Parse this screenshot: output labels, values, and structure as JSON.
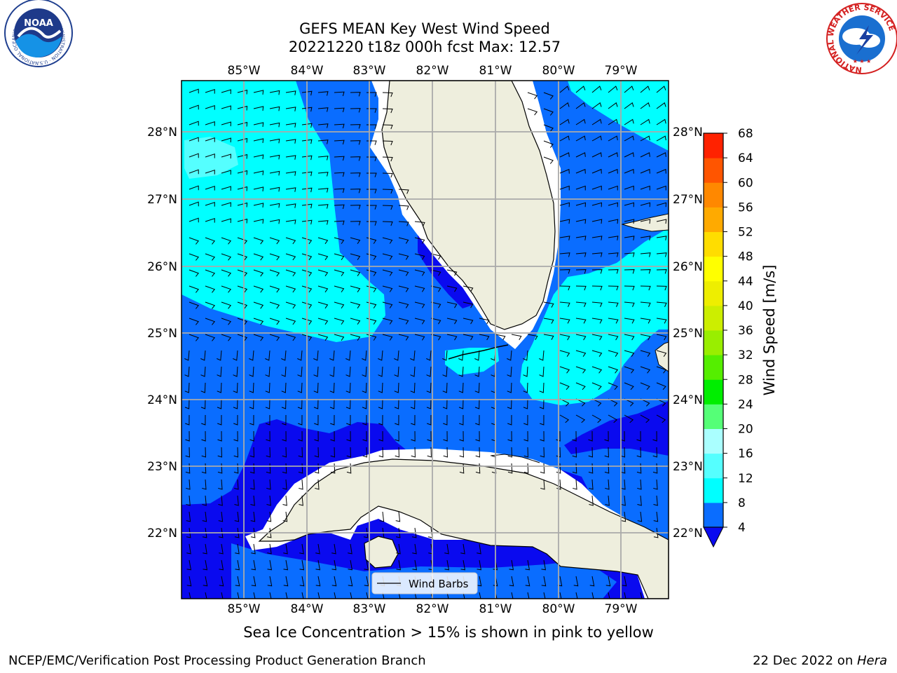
{
  "header": {
    "title_line1": "GEFS MEAN Key West Wind Speed",
    "title_line2": "20221220 t18z 000h fcst   Max: 12.57"
  },
  "logos": {
    "noaa_text": "NOAA",
    "noaa_ring_text": "NATIONAL OCEANIC AND ATMOSPHERIC ADMINISTRATION · U.S. DEPARTMENT OF COMMERCE",
    "nws_ring_text": "NATIONAL WEATHER SERVICE"
  },
  "map": {
    "lon_labels": [
      "85°W",
      "84°W",
      "83°W",
      "82°W",
      "81°W",
      "80°W",
      "79°W"
    ],
    "lat_labels": [
      "28°N",
      "27°N",
      "26°N",
      "25°N",
      "24°N",
      "23°N",
      "22°N"
    ],
    "legend_label": "Wind Barbs",
    "colors": {
      "land": "#eeeedd",
      "level_4_8": "#0a6dff",
      "level_0_4": "#0a0aef",
      "level_8_12": "#00ffff",
      "level_12_16": "#55ffff",
      "coast_gap": "#ffffff"
    }
  },
  "colorbar": {
    "label": "Wind Speed [m/s]",
    "ticks": [
      "4",
      "8",
      "12",
      "16",
      "20",
      "24",
      "28",
      "32",
      "36",
      "40",
      "44",
      "48",
      "52",
      "56",
      "60",
      "64",
      "68"
    ],
    "colors": [
      "#0a6dff",
      "#00ffff",
      "#55ffff",
      "#aaffff",
      "#55ff77",
      "#00ee00",
      "#55ee00",
      "#99ee00",
      "#ccee00",
      "#eeee00",
      "#ffff00",
      "#ffdd00",
      "#ffaa00",
      "#ff8800",
      "#ff5500",
      "#ff2200"
    ],
    "under_color": "#0a0aef"
  },
  "caption": "Sea Ice Concentration > 15% is shown in pink to yellow",
  "footer": {
    "left": "NCEP/EMC/Verification Post Processing Product Generation Branch",
    "right_prefix": "22 Dec 2022 on ",
    "right_host": "Hera"
  }
}
